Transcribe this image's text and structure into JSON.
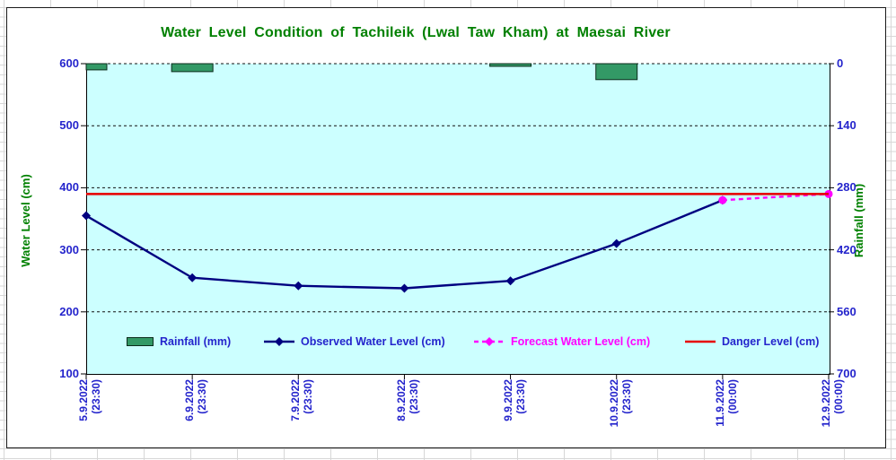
{
  "chart_data": {
    "type": "combo",
    "title": "Water Level Condition of Tachileik (Lwal Taw Kham) at Maesai River",
    "categories": [
      "5.9.2022 (23:30)",
      "6.9.2022 (23:30)",
      "7.9.2022 (23:30)",
      "8.9.2022 (23:30)",
      "9.9.2022 (23:30)",
      "10.9.2022 (23:30)",
      "11.9.2022 (00:00)",
      "12.9.2022 (00:00)"
    ],
    "series": [
      {
        "name": "Rainfall (mm)",
        "type": "bar",
        "axis": "right",
        "color": "#339966",
        "label_color": "#2424cc",
        "values": [
          14,
          18,
          0,
          0,
          6,
          36,
          0,
          0
        ]
      },
      {
        "name": "Observed Water Level (cm)",
        "type": "line",
        "style": "solid",
        "marker": "diamond",
        "axis": "left",
        "color": "#000080",
        "label_color": "#2424cc",
        "values": [
          355,
          255,
          242,
          238,
          250,
          310,
          380,
          null
        ]
      },
      {
        "name": "Forecast Water Level (cm)",
        "type": "line",
        "style": "dashed",
        "marker": "circle",
        "axis": "left",
        "color": "#ff00ff",
        "label_color": "#ff00ff",
        "values": [
          null,
          null,
          null,
          null,
          null,
          null,
          380,
          390
        ]
      },
      {
        "name": "Danger Level (cm)",
        "type": "hline",
        "axis": "left",
        "color": "#e60000",
        "label_color": "#2424cc",
        "value": 390
      }
    ],
    "left_axis": {
      "label": "Water Level (cm)",
      "min": 100,
      "max": 600,
      "ticks": [
        600,
        500,
        400,
        300,
        200,
        100
      ]
    },
    "right_axis": {
      "label": "Rainfall (mm)",
      "min": 0,
      "max": 700,
      "ticks": [
        0,
        140,
        280,
        420,
        560,
        700
      ],
      "inverted": true
    },
    "grid": "dashed-horizontal",
    "legend_position": "bottom-inside",
    "plot_bg": "#ccffff"
  },
  "text_colors": {
    "title": "#008000",
    "axis_titles": "#008000",
    "tick_labels": "#2424cc"
  }
}
